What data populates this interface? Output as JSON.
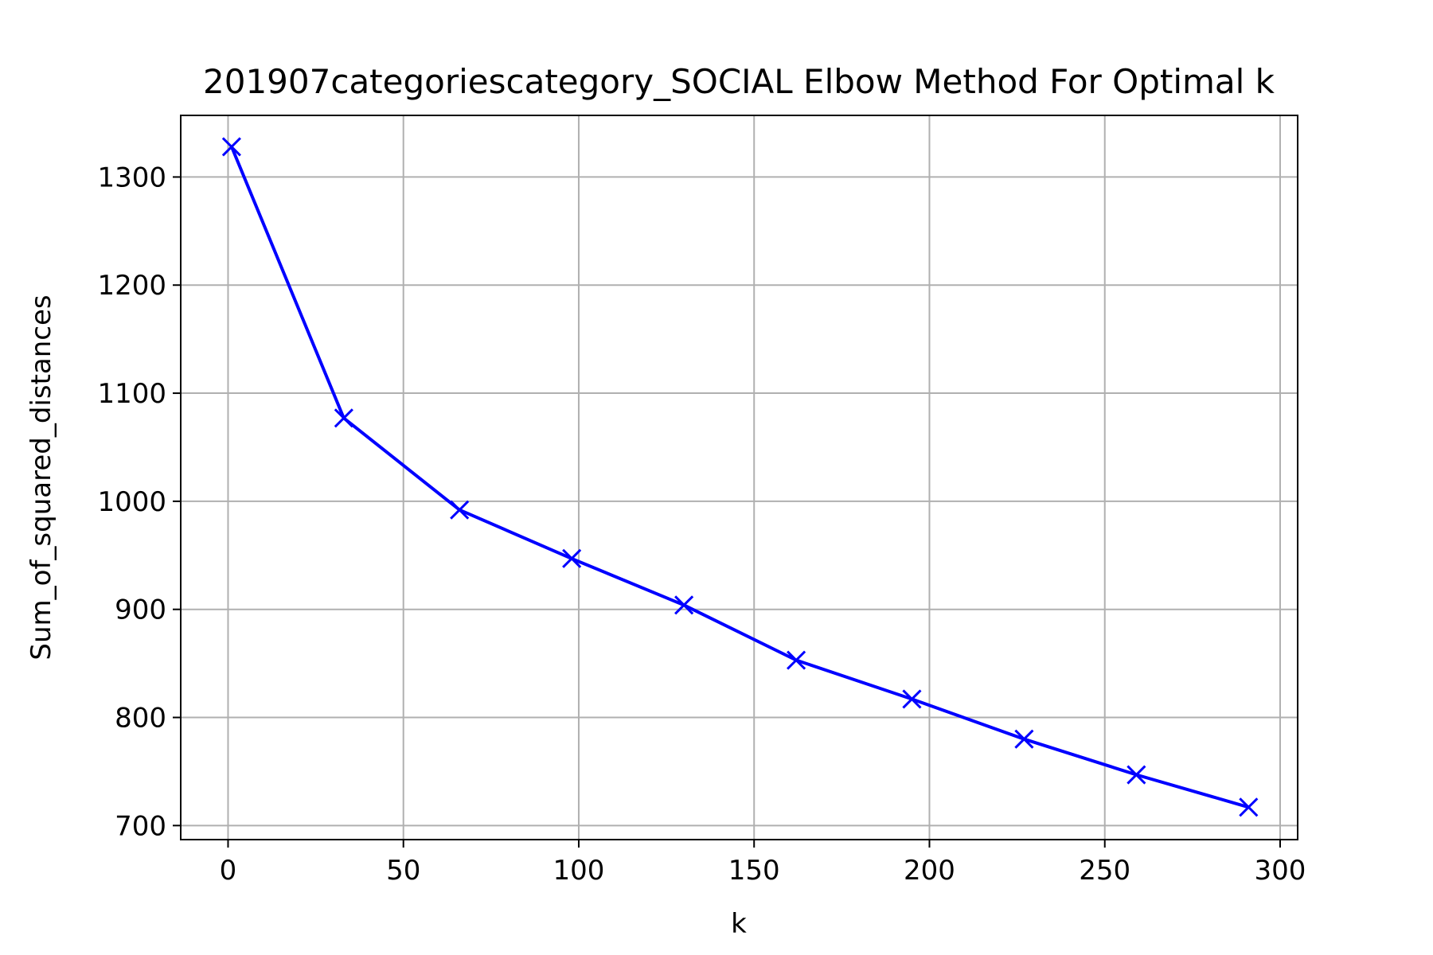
{
  "chart_data": {
    "type": "line",
    "title": "201907categoriescategory_SOCIAL Elbow Method For Optimal k",
    "xlabel": "k",
    "ylabel": "Sum_of_squared_distances",
    "xlim": [
      -13.5,
      305
    ],
    "ylim": [
      687,
      1357
    ],
    "xticks": [
      0,
      50,
      100,
      150,
      200,
      250,
      300
    ],
    "yticks": [
      700,
      800,
      900,
      1000,
      1100,
      1200,
      1300
    ],
    "grid": true,
    "marker": "x",
    "color": "#0000ff",
    "series": [
      {
        "x": [
          1,
          33,
          66,
          98,
          130,
          162,
          195,
          227,
          259,
          291
        ],
        "y": [
          1328,
          1077,
          992,
          947,
          904,
          853,
          817,
          780,
          747,
          717
        ]
      }
    ]
  }
}
